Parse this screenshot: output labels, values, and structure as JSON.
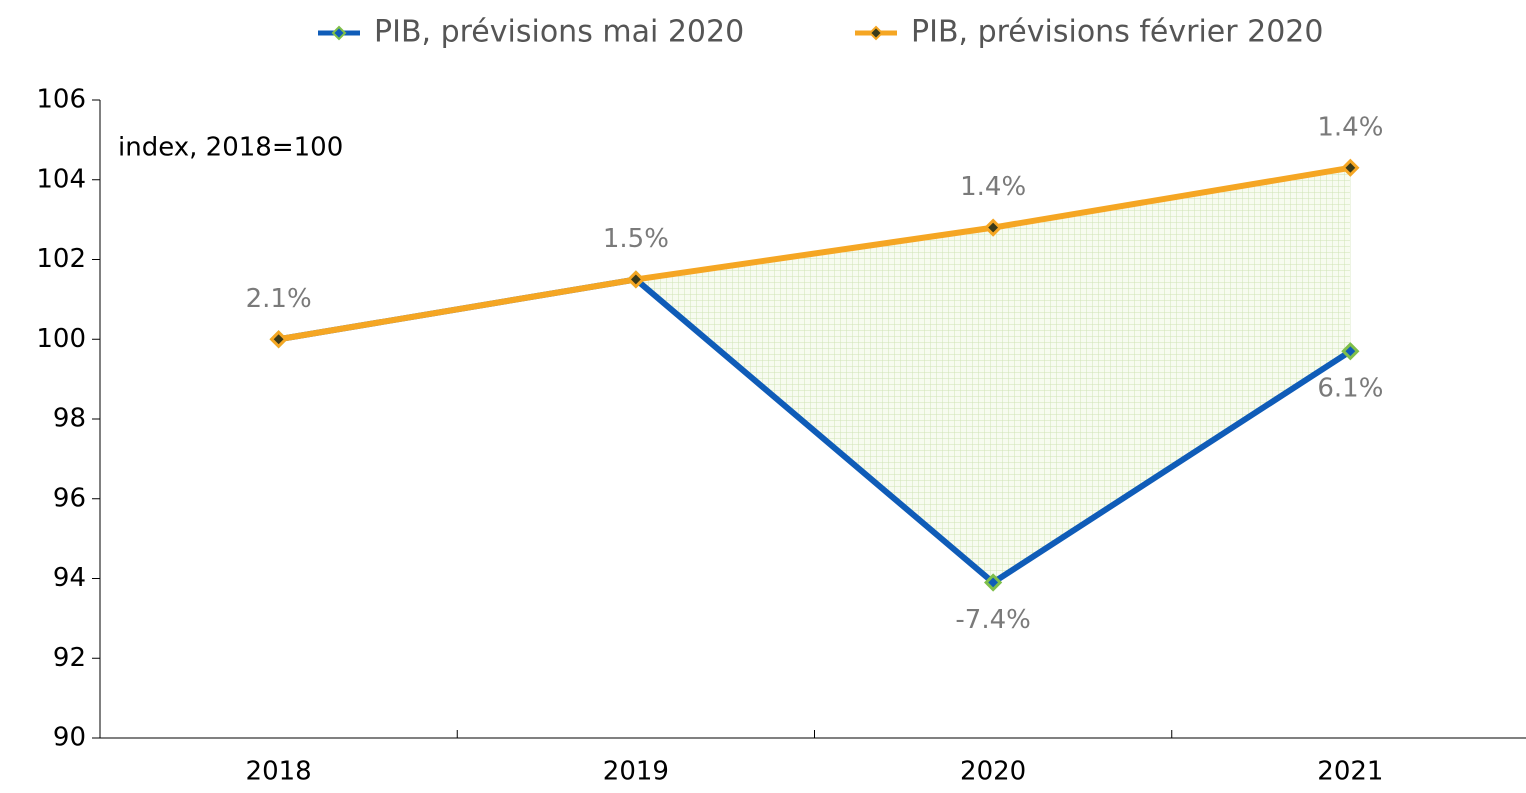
{
  "chart_data": {
    "type": "line",
    "y_axis_label": "index, 2018=100",
    "categories": [
      "2018",
      "2019",
      "2020",
      "2021"
    ],
    "series": [
      {
        "name": "PIB, prévisions mai 2020",
        "color": "#0f5cb8",
        "values": [
          100,
          101.5,
          93.9,
          99.7
        ],
        "annotations": [
          null,
          null,
          "-7.4%",
          "6.1%"
        ]
      },
      {
        "name": "PIB, prévisions février 2020",
        "color": "#f5a623",
        "values": [
          100,
          101.5,
          102.8,
          104.3
        ],
        "annotations": [
          "2.1%",
          "1.5%",
          "1.4%",
          "1.4%"
        ]
      }
    ],
    "ylim": [
      90,
      106
    ],
    "yticks": [
      90,
      92,
      94,
      96,
      98,
      100,
      102,
      104,
      106
    ],
    "fill_between": true,
    "legend": "top"
  }
}
